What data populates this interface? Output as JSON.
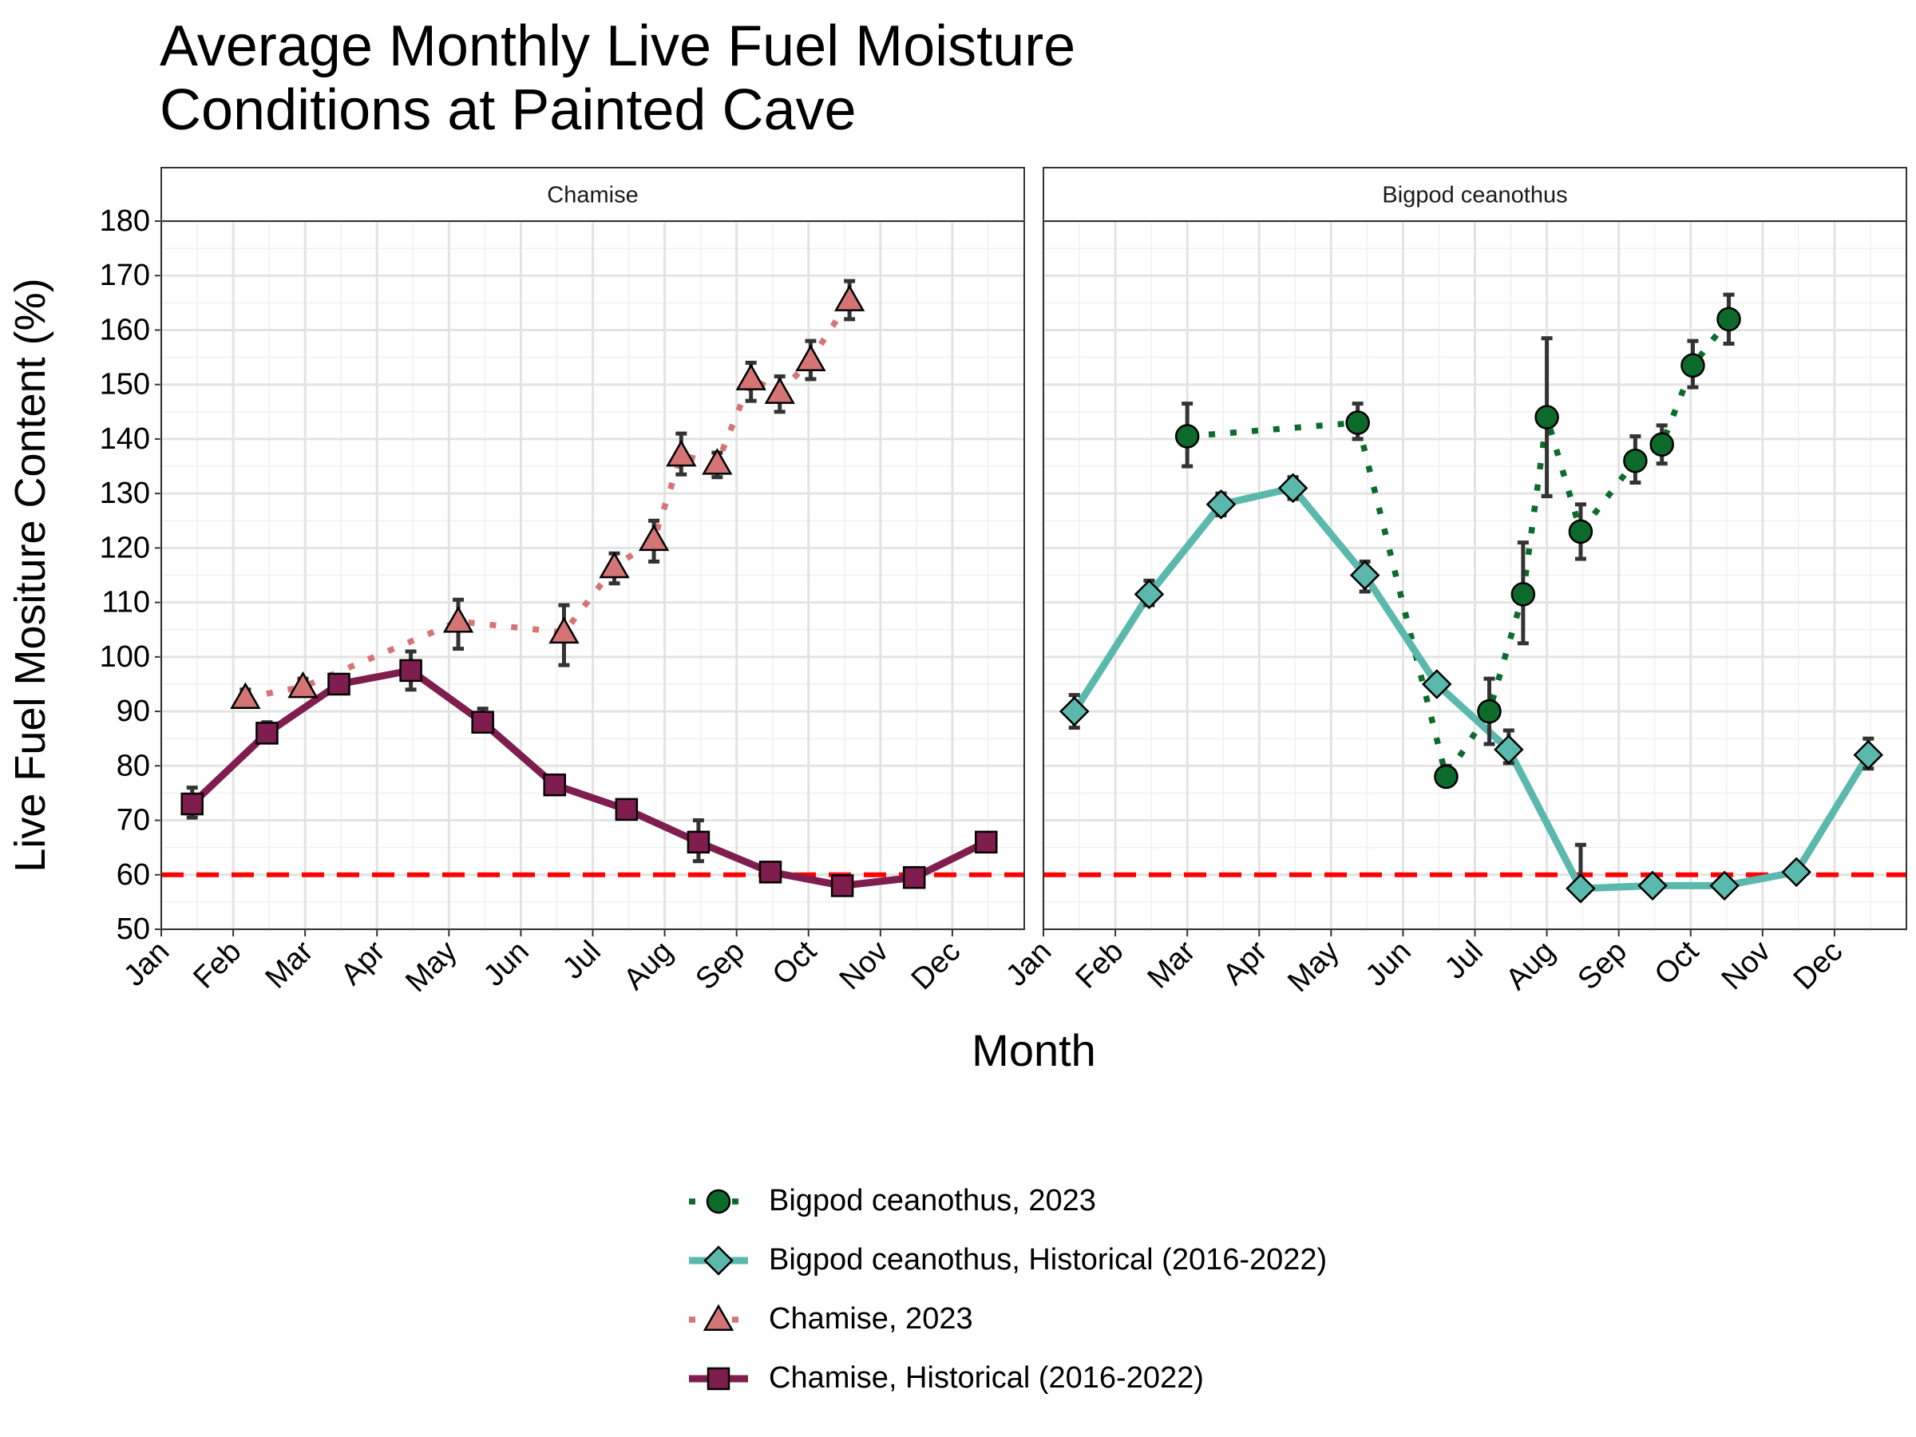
{
  "title_lines": [
    "Average Monthly Live Fuel Moisture",
    "Conditions at Painted Cave"
  ],
  "chart_data": {
    "type": "line",
    "xlabel": "Month",
    "ylabel": "Live Fuel Mositure Content (%)",
    "ylim": [
      50,
      180
    ],
    "y_ticks": [
      50,
      60,
      70,
      80,
      90,
      100,
      110,
      120,
      130,
      140,
      150,
      160,
      170,
      180
    ],
    "x_tick_labels": [
      "Jan",
      "Feb",
      "Mar",
      "Apr",
      "May",
      "Jun",
      "Jul",
      "Aug",
      "Sep",
      "Oct",
      "Nov",
      "Dec"
    ],
    "x_unit": "month (1 = Jan 1, 13 = end of Dec)",
    "xlim": [
      1,
      13
    ],
    "grid": true,
    "legend_position": "bottom",
    "reference_line": {
      "y": 60,
      "color": "#ff0000",
      "style": "dashed"
    },
    "panels": [
      {
        "strip_label": "Chamise",
        "series": [
          {
            "name": "Chamise, 2023",
            "color": "#d47474",
            "marker": "triangle",
            "line_style": "dotted",
            "points": [
              {
                "x": 2.17,
                "y": 92.5,
                "err": [
                  91.0,
                  94.0
                ]
              },
              {
                "x": 2.97,
                "y": 94.5,
                "err": [
                  93.0,
                  96.0
                ]
              },
              {
                "x": 5.13,
                "y": 106.5,
                "err": [
                  101.5,
                  110.5
                ]
              },
              {
                "x": 6.6,
                "y": 104.5,
                "err": [
                  98.5,
                  109.5
                ]
              },
              {
                "x": 7.3,
                "y": 116.5,
                "err": [
                  113.5,
                  119.0
                ]
              },
              {
                "x": 7.85,
                "y": 121.5,
                "err": [
                  117.5,
                  125.0
                ]
              },
              {
                "x": 8.23,
                "y": 137.0,
                "err": [
                  133.5,
                  141.0
                ]
              },
              {
                "x": 8.73,
                "y": 135.5,
                "err": [
                  133.0,
                  137.5
                ]
              },
              {
                "x": 9.2,
                "y": 151.0,
                "err": [
                  147.0,
                  154.0
                ]
              },
              {
                "x": 9.6,
                "y": 148.5,
                "err": [
                  145.0,
                  151.5
                ]
              },
              {
                "x": 10.03,
                "y": 154.5,
                "err": [
                  151.0,
                  158.0
                ]
              },
              {
                "x": 10.57,
                "y": 165.5,
                "err": [
                  162.0,
                  169.0
                ]
              }
            ]
          },
          {
            "name": "Chamise, Historical (2016-2022)",
            "color": "#7f1d4e",
            "marker": "square",
            "line_style": "solid",
            "points": [
              {
                "x": 1.43,
                "y": 73.0,
                "err": [
                  70.5,
                  76.0
                ]
              },
              {
                "x": 2.47,
                "y": 86.0,
                "err": [
                  84.5,
                  88.0
                ]
              },
              {
                "x": 3.47,
                "y": 95.0,
                "err": [
                  93.5,
                  96.5
                ]
              },
              {
                "x": 4.47,
                "y": 97.5,
                "err": [
                  94.0,
                  101.0
                ]
              },
              {
                "x": 5.47,
                "y": 88.0,
                "err": [
                  86.5,
                  90.5
                ]
              },
              {
                "x": 6.47,
                "y": 76.5,
                "err": [
                  76.0,
                  77.5
                ]
              },
              {
                "x": 7.47,
                "y": 72.0,
                "err": [
                  71.0,
                  73.0
                ]
              },
              {
                "x": 8.47,
                "y": 66.0,
                "err": [
                  62.5,
                  70.0
                ]
              },
              {
                "x": 9.47,
                "y": 60.5,
                "err": [
                  60.0,
                  61.5
                ]
              },
              {
                "x": 10.47,
                "y": 58.0,
                "err": [
                  57.0,
                  59.0
                ]
              },
              {
                "x": 11.47,
                "y": 59.5,
                "err": [
                  59.0,
                  60.0
                ]
              },
              {
                "x": 12.47,
                "y": 66.0,
                "err": [
                  65.5,
                  67.0
                ]
              }
            ]
          }
        ]
      },
      {
        "strip_label": "Bigpod ceanothus",
        "series": [
          {
            "name": "Bigpod ceanothus, 2023",
            "color": "#0c6b2a",
            "marker": "circle",
            "line_style": "dotted",
            "points": [
              {
                "x": 3.0,
                "y": 140.5,
                "err": [
                  135.0,
                  146.5
                ]
              },
              {
                "x": 5.37,
                "y": 143.0,
                "err": [
                  140.0,
                  146.5
                ]
              },
              {
                "x": 6.6,
                "y": 78.0,
                "err": [
                  76.5,
                  80.0
                ]
              },
              {
                "x": 7.2,
                "y": 90.0,
                "err": [
                  84.0,
                  96.0
                ]
              },
              {
                "x": 7.67,
                "y": 111.5,
                "err": [
                  102.5,
                  121.0
                ]
              },
              {
                "x": 8.0,
                "y": 144.0,
                "err": [
                  129.5,
                  158.5
                ]
              },
              {
                "x": 8.47,
                "y": 123.0,
                "err": [
                  118.0,
                  128.0
                ]
              },
              {
                "x": 9.23,
                "y": 136.0,
                "err": [
                  132.0,
                  140.5
                ]
              },
              {
                "x": 9.6,
                "y": 139.0,
                "err": [
                  135.5,
                  142.5
                ]
              },
              {
                "x": 10.03,
                "y": 153.5,
                "err": [
                  149.5,
                  158.0
                ]
              },
              {
                "x": 10.53,
                "y": 162.0,
                "err": [
                  157.5,
                  166.5
                ]
              }
            ]
          },
          {
            "name": "Bigpod ceanothus, Historical (2016-2022)",
            "color": "#5bb8ad",
            "marker": "diamond",
            "line_style": "solid",
            "points": [
              {
                "x": 1.43,
                "y": 90.0,
                "err": [
                  87.0,
                  93.0
                ]
              },
              {
                "x": 2.47,
                "y": 111.5,
                "err": [
                  109.5,
                  114.0
                ]
              },
              {
                "x": 3.47,
                "y": 128.0,
                "err": [
                  126.0,
                  130.0
                ]
              },
              {
                "x": 4.47,
                "y": 131.0,
                "err": [
                  129.0,
                  133.0
                ]
              },
              {
                "x": 5.47,
                "y": 115.0,
                "err": [
                  112.0,
                  117.5
                ]
              },
              {
                "x": 6.47,
                "y": 95.0,
                "err": [
                  94.0,
                  96.0
                ]
              },
              {
                "x": 7.47,
                "y": 83.0,
                "err": [
                  80.5,
                  86.5
                ]
              },
              {
                "x": 8.47,
                "y": 57.5,
                "err": [
                  57.0,
                  65.5
                ]
              },
              {
                "x": 9.47,
                "y": 58.0,
                "err": [
                  57.5,
                  58.5
                ]
              },
              {
                "x": 10.47,
                "y": 58.0,
                "err": [
                  57.5,
                  58.5
                ]
              },
              {
                "x": 11.47,
                "y": 60.5,
                "err": [
                  60.0,
                  61.0
                ]
              },
              {
                "x": 12.47,
                "y": 82.0,
                "err": [
                  79.5,
                  85.0
                ]
              }
            ]
          }
        ]
      }
    ]
  },
  "legend": {
    "items": [
      {
        "label": "Bigpod ceanothus, 2023",
        "color": "#0c6b2a",
        "marker": "circle",
        "line_style": "dotted"
      },
      {
        "label": "Bigpod ceanothus, Historical (2016-2022)",
        "color": "#5bb8ad",
        "marker": "diamond",
        "line_style": "solid"
      },
      {
        "label": "Chamise, 2023",
        "color": "#d47474",
        "marker": "triangle",
        "line_style": "dotted"
      },
      {
        "label": "Chamise, Historical (2016-2022)",
        "color": "#7f1d4e",
        "marker": "square",
        "line_style": "solid"
      }
    ]
  }
}
